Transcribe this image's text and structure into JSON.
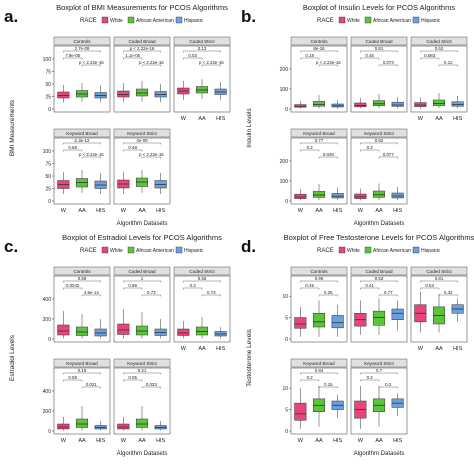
{
  "figure": {
    "width": 474,
    "height": 474,
    "colors": {
      "W": "#e8457a",
      "AA": "#5cc43a",
      "HIS": "#6a9fe0",
      "strip": "#e0e0e0",
      "panel_border": "#555555",
      "box_line": "#333333"
    },
    "race_legend_title": "RACE",
    "race_legend": [
      {
        "key": "W",
        "label": "White"
      },
      {
        "key": "AA",
        "label": "African American"
      },
      {
        "key": "HIS",
        "label": "Hispanic"
      }
    ],
    "x_tick_labels": [
      "W",
      "AA",
      "HIS"
    ],
    "xlabel": "Algorithm Datasets"
  },
  "chart_data": [
    {
      "letter": "a.",
      "type": "box",
      "title": "Boxplot of BMI Measurements for PCOS Algorithms",
      "ylabel": "BMI Measurements",
      "ylim": [
        0,
        120
      ],
      "yticks": [
        0,
        25,
        50,
        75,
        100
      ],
      "facets": [
        {
          "name": "Controls",
          "p": [
            "2.7e-08",
            "7.9e-05",
            "p < 2.22e-16"
          ],
          "boxes": {
            "W": [
              13,
              22,
              27,
              34,
              48
            ],
            "AA": [
              14,
              24,
              30,
              37,
              52
            ],
            "HIS": [
              13,
              22,
              27,
              33,
              47
            ]
          }
        },
        {
          "name": "Coded Broad",
          "p": [
            "p < 2.22e-16",
            "1.1e-05",
            "p < 2.22e-16"
          ],
          "boxes": {
            "W": [
              14,
              24,
              29,
              36,
              52
            ],
            "AA": [
              15,
              26,
              32,
              40,
              56
            ],
            "HIS": [
              14,
              24,
              29,
              35,
              50
            ]
          }
        },
        {
          "name": "Coded Strict",
          "p": [
            "0.13",
            "0.03",
            "p < 2.22e-16"
          ],
          "boxes": {
            "W": [
              18,
              30,
              36,
              42,
              56
            ],
            "AA": [
              20,
              32,
              38,
              45,
              60
            ],
            "HIS": [
              18,
              29,
              34,
              40,
              54
            ]
          }
        },
        {
          "name": "Keyword Broad",
          "p": [
            "2.3e-12",
            "0.68",
            "p < 2.22e-16"
          ],
          "boxes": {
            "W": [
              14,
              25,
              33,
              41,
              58
            ],
            "AA": [
              16,
              28,
              37,
              45,
              62
            ],
            "HIS": [
              14,
              25,
              32,
              40,
              56
            ]
          }
        },
        {
          "name": "Keyword Strict",
          "p": [
            "3e-09",
            "0.48",
            "p < 2.22e-16"
          ],
          "boxes": {
            "W": [
              14,
              26,
              34,
              42,
              58
            ],
            "AA": [
              16,
              29,
              38,
              46,
              62
            ],
            "HIS": [
              14,
              26,
              33,
              41,
              56
            ]
          }
        }
      ]
    },
    {
      "letter": "b.",
      "type": "box",
      "title": "Boxplot of Insulin Levels for PCOS Algorithms",
      "ylabel": "Insulin Levels",
      "ylim": [
        0,
        300
      ],
      "yticks": [
        0,
        100,
        200
      ],
      "facets": [
        {
          "name": "Controls",
          "p": [
            "8e-16",
            "0.18",
            "p < 2.22e-16"
          ],
          "boxes": {
            "W": [
              2,
              9,
              14,
              22,
              40
            ],
            "AA": [
              3,
              14,
              22,
              38,
              70
            ],
            "HIS": [
              2,
              10,
              16,
              25,
              45
            ]
          }
        },
        {
          "name": "Coded Broad",
          "p": [
            "0.81",
            "0.45",
            "0.073"
          ],
          "boxes": {
            "W": [
              3,
              11,
              18,
              30,
              55
            ],
            "AA": [
              4,
              16,
              26,
              42,
              75
            ],
            "HIS": [
              3,
              13,
              20,
              34,
              60
            ]
          }
        },
        {
          "name": "Coded Strict",
          "p": [
            "0.62",
            "0.083",
            "0.12"
          ],
          "boxes": {
            "W": [
              3,
              12,
              20,
              32,
              58
            ],
            "AA": [
              5,
              17,
              28,
              45,
              80
            ],
            "HIS": [
              4,
              14,
              23,
              36,
              65
            ]
          }
        },
        {
          "name": "Keyword Broad",
          "p": [
            "0.77",
            "0.2",
            "0.049"
          ],
          "boxes": {
            "W": [
              3,
              12,
              20,
              34,
              60
            ],
            "AA": [
              5,
              18,
              30,
              48,
              85
            ],
            "HIS": [
              4,
              15,
              24,
              38,
              68
            ]
          }
        },
        {
          "name": "Keyword Strict",
          "p": [
            "0.82",
            "0.3",
            "0.077"
          ],
          "boxes": {
            "W": [
              3,
              12,
              21,
              35,
              62
            ],
            "AA": [
              5,
              18,
              31,
              50,
              88
            ],
            "HIS": [
              4,
              15,
              25,
              40,
              70
            ]
          }
        }
      ]
    },
    {
      "letter": "c.",
      "type": "box",
      "title": "Boxplot of Estradiol Levels for PCOS Algorithms",
      "ylabel": "Estradiol Levels",
      "ylim": [
        0,
        600
      ],
      "yticks": [
        0,
        200,
        400
      ],
      "facets": [
        {
          "name": "Controls",
          "p": [
            "0.59",
            "0.0042",
            "4.9e-14"
          ],
          "boxes": {
            "W": [
              5,
              40,
              80,
              140,
              280
            ],
            "AA": [
              5,
              35,
              70,
              120,
              250
            ],
            "HIS": [
              5,
              30,
              60,
              100,
              200
            ]
          }
        },
        {
          "name": "Coded Broad",
          "p": [
            "1",
            "0.89",
            "0.73"
          ],
          "boxes": {
            "W": [
              5,
              45,
              90,
              150,
              300
            ],
            "AA": [
              5,
              40,
              80,
              130,
              270
            ],
            "HIS": [
              5,
              35,
              65,
              100,
              200
            ]
          }
        },
        {
          "name": "Coded Strict",
          "p": [
            "0.55",
            "0.3",
            "0.73"
          ],
          "boxes": {
            "W": [
              5,
              35,
              60,
              100,
              180
            ],
            "AA": [
              5,
              40,
              75,
              120,
              220
            ],
            "HIS": [
              5,
              30,
              50,
              75,
              120
            ]
          }
        },
        {
          "name": "Keyword Broad",
          "p": [
            "0.16",
            "0.08",
            "0.021"
          ],
          "boxes": {
            "W": [
              5,
              20,
              40,
              70,
              140
            ],
            "AA": [
              5,
              35,
              70,
              120,
              250
            ],
            "HIS": [
              5,
              20,
              35,
              55,
              100
            ]
          }
        },
        {
          "name": "Keyword Strict",
          "p": [
            "0.21",
            "0.05",
            "0.033"
          ],
          "boxes": {
            "W": [
              5,
              20,
              40,
              70,
              140
            ],
            "AA": [
              5,
              35,
              70,
              120,
              250
            ],
            "HIS": [
              5,
              20,
              35,
              55,
              100
            ]
          }
        }
      ]
    },
    {
      "letter": "d.",
      "type": "box",
      "title": "Boxplot of Free Testosterone Levels for PCOS Algorithms",
      "ylabel": "Testosterone Levels",
      "ylim": [
        0,
        14
      ],
      "yticks": [
        0,
        5,
        10
      ],
      "facets": [
        {
          "name": "Controls",
          "p": [
            "0.96",
            "0.45",
            "0.25"
          ],
          "boxes": {
            "W": [
              0.5,
              2.5,
              3.5,
              5,
              7.5
            ],
            "AA": [
              0.5,
              2.8,
              4,
              6,
              9
            ],
            "HIS": [
              0.5,
              2.6,
              3.8,
              5.5,
              8
            ]
          }
        },
        {
          "name": "Coded Broad",
          "p": [
            "0.52",
            "0.41",
            "0.77"
          ],
          "boxes": {
            "W": [
              1,
              3,
              4.5,
              6,
              9
            ],
            "AA": [
              1,
              3.2,
              5,
              6.5,
              9.5
            ],
            "HIS": [
              2,
              4.5,
              6,
              7,
              9
            ]
          }
        },
        {
          "name": "Coded Strict",
          "p": [
            "0.81",
            "0.53",
            "0.42"
          ],
          "boxes": {
            "W": [
              1.5,
              4,
              6,
              8,
              11
            ],
            "AA": [
              1.5,
              3.5,
              5.5,
              7.5,
              10.5
            ],
            "HIS": [
              4,
              6,
              7,
              8,
              9.5
            ]
          }
        },
        {
          "name": "Keyword Broad",
          "p": [
            "0.84",
            "0.2",
            "0.15"
          ],
          "boxes": {
            "W": [
              0.5,
              2.5,
              4,
              6.5,
              10
            ],
            "AA": [
              1,
              4.5,
              6,
              7.5,
              10.5
            ],
            "HIS": [
              3,
              5,
              6,
              7,
              8.5
            ]
          }
        },
        {
          "name": "Keyword Strict",
          "p": [
            "0.7",
            "0.2",
            "0.2"
          ],
          "boxes": {
            "W": [
              0.5,
              3,
              5,
              7,
              10.5
            ],
            "AA": [
              1,
              4.5,
              6,
              7.5,
              10.5
            ],
            "HIS": [
              3.5,
              5.5,
              6.5,
              7.5,
              8.8
            ]
          }
        }
      ]
    }
  ]
}
